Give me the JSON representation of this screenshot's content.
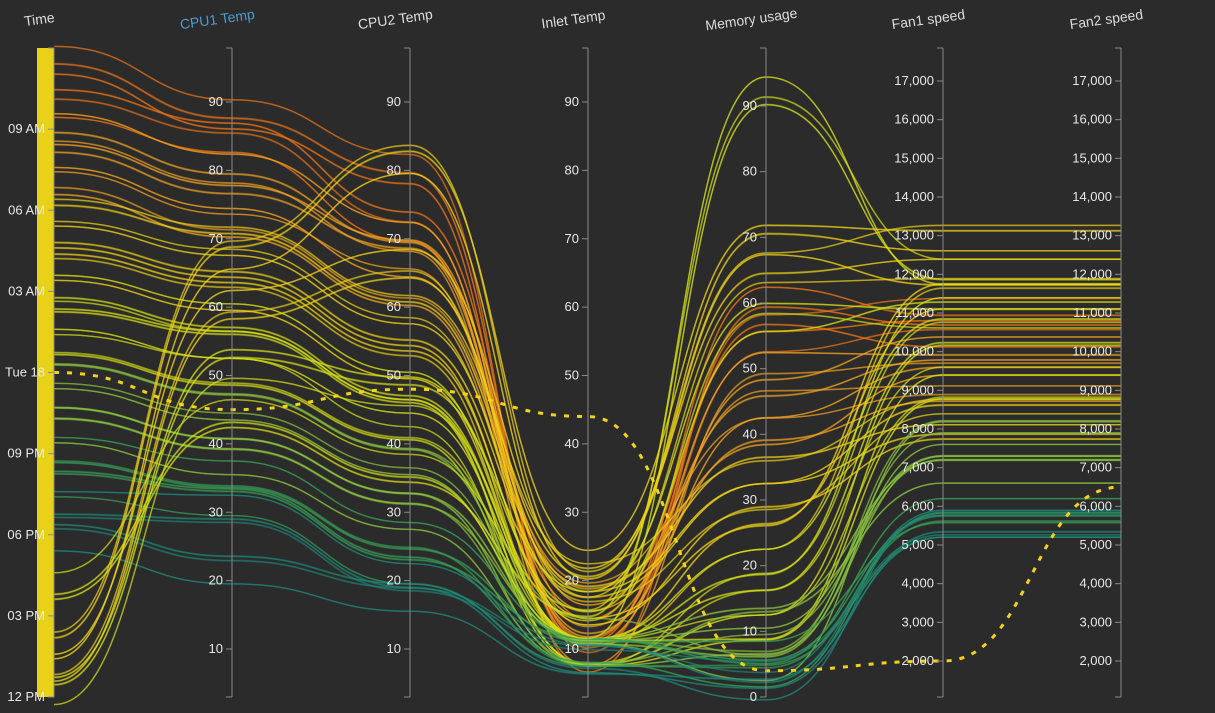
{
  "chart_data": {
    "type": "parallel-coordinates",
    "background": "#2b2b2b",
    "color_scale": [
      "#1f8a7a",
      "#3aa05a",
      "#8cc63f",
      "#d6e21a",
      "#f2d31a",
      "#f5a623",
      "#f07818"
    ],
    "axes": [
      {
        "key": "time",
        "title": "Time",
        "active": false,
        "kind": "time",
        "ticks": [
          "12 PM",
          "03 PM",
          "06 PM",
          "09 PM",
          "Tue 18",
          "03 AM",
          "06 AM",
          "09 AM"
        ],
        "tick_values": [
          0,
          3,
          6,
          9,
          12,
          15,
          18,
          21
        ],
        "range": [
          0,
          24
        ]
      },
      {
        "key": "cpu1",
        "title": "CPU1 Temp",
        "active": true,
        "kind": "linear",
        "ticks": [
          "10",
          "20",
          "30",
          "40",
          "50",
          "60",
          "70",
          "80",
          "90"
        ],
        "tick_values": [
          10,
          20,
          30,
          40,
          50,
          60,
          70,
          80,
          90
        ],
        "range": [
          2,
          97
        ]
      },
      {
        "key": "cpu2",
        "title": "CPU2 Temp",
        "active": false,
        "kind": "linear",
        "ticks": [
          "10",
          "20",
          "30",
          "40",
          "50",
          "60",
          "70",
          "80",
          "90"
        ],
        "tick_values": [
          10,
          20,
          30,
          40,
          50,
          60,
          70,
          80,
          90
        ],
        "range": [
          2,
          97
        ]
      },
      {
        "key": "inlet",
        "title": "Inlet Temp",
        "active": false,
        "kind": "linear",
        "ticks": [
          "10",
          "20",
          "30",
          "40",
          "50",
          "60",
          "70",
          "80",
          "90"
        ],
        "tick_values": [
          10,
          20,
          30,
          40,
          50,
          60,
          70,
          80,
          90
        ],
        "range": [
          2,
          97
        ]
      },
      {
        "key": "memory",
        "title": "Memory usage",
        "active": false,
        "kind": "linear",
        "ticks": [
          "0",
          "10",
          "20",
          "30",
          "40",
          "50",
          "60",
          "70",
          "80",
          "90"
        ],
        "tick_values": [
          0,
          10,
          20,
          30,
          40,
          50,
          60,
          70,
          80,
          90
        ],
        "range": [
          0,
          99
        ]
      },
      {
        "key": "fan1",
        "title": "Fan1 speed",
        "active": false,
        "kind": "linear",
        "ticks": [
          "2,000",
          "3,000",
          "4,000",
          "5,000",
          "6,000",
          "7,000",
          "8,000",
          "9,000",
          "10,000",
          "11,000",
          "12,000",
          "13,000",
          "14,000",
          "15,000",
          "16,000",
          "17,000"
        ],
        "tick_values": [
          2000,
          3000,
          4000,
          5000,
          6000,
          7000,
          8000,
          9000,
          10000,
          11000,
          12000,
          13000,
          14000,
          15000,
          16000,
          17000
        ],
        "range": [
          1000,
          17700
        ]
      },
      {
        "key": "fan2",
        "title": "Fan2 speed",
        "active": false,
        "kind": "linear",
        "ticks": [
          "2,000",
          "3,000",
          "4,000",
          "5,000",
          "6,000",
          "7,000",
          "8,000",
          "9,000",
          "10,000",
          "11,000",
          "12,000",
          "13,000",
          "14,000",
          "15,000",
          "16,000",
          "17,000"
        ],
        "tick_values": [
          2000,
          3000,
          4000,
          5000,
          6000,
          7000,
          8000,
          9000,
          10000,
          11000,
          12000,
          13000,
          14000,
          15000,
          16000,
          17000
        ],
        "range": [
          1000,
          17700
        ]
      }
    ],
    "records": [
      {
        "time": 23.5,
        "cpu1": 88,
        "cpu2": 80,
        "inlet": 9,
        "memory": 60,
        "fan1": 11000,
        "fan2": 11000,
        "c": 6
      },
      {
        "time": 22.0,
        "cpu1": 85,
        "cpu2": 72,
        "inlet": 12,
        "memory": 55,
        "fan1": 10500,
        "fan2": 10500,
        "c": 6
      },
      {
        "time": 21.0,
        "cpu1": 80,
        "cpu2": 70,
        "inlet": 10,
        "memory": 50,
        "fan1": 10000,
        "fan2": 10000,
        "c": 5
      },
      {
        "time": 20.0,
        "cpu1": 76,
        "cpu2": 68,
        "inlet": 14,
        "memory": 45,
        "fan1": 9500,
        "fan2": 9500,
        "c": 5
      },
      {
        "time": 19.0,
        "cpu1": 72,
        "cpu2": 62,
        "inlet": 18,
        "memory": 40,
        "fan1": 9000,
        "fan2": 9000,
        "c": 5
      },
      {
        "time": 18.0,
        "cpu1": 70,
        "cpu2": 60,
        "inlet": 20,
        "memory": 35,
        "fan1": 8500,
        "fan2": 8500,
        "c": 4
      },
      {
        "time": 17.0,
        "cpu1": 66,
        "cpu2": 56,
        "inlet": 16,
        "memory": 30,
        "fan1": 8000,
        "fan2": 8000,
        "c": 4
      },
      {
        "time": 16.0,
        "cpu1": 62,
        "cpu2": 52,
        "inlet": 12,
        "memory": 25,
        "fan1": 11500,
        "fan2": 11500,
        "c": 4
      },
      {
        "time": 15.0,
        "cpu1": 58,
        "cpu2": 48,
        "inlet": 10,
        "memory": 20,
        "fan1": 11000,
        "fan2": 11000,
        "c": 3
      },
      {
        "time": 14.0,
        "cpu1": 55,
        "cpu2": 45,
        "inlet": 9,
        "memory": 15,
        "fan1": 10000,
        "fan2": 10000,
        "c": 3
      },
      {
        "time": 13.0,
        "cpu1": 50,
        "cpu2": 42,
        "inlet": 10,
        "memory": 10,
        "fan1": 9000,
        "fan2": 9000,
        "c": 3
      },
      {
        "time": 12.0,
        "cpu1": 46,
        "cpu2": 38,
        "inlet": 12,
        "memory": 5,
        "fan1": 8000,
        "fan2": 8000,
        "c": 2
      },
      {
        "time": 11.0,
        "cpu1": 42,
        "cpu2": 34,
        "inlet": 10,
        "memory": 8,
        "fan1": 7500,
        "fan2": 7500,
        "c": 2
      },
      {
        "time": 10.0,
        "cpu1": 38,
        "cpu2": 30,
        "inlet": 9,
        "memory": 12,
        "fan1": 7000,
        "fan2": 7000,
        "c": 2
      },
      {
        "time": 9.0,
        "cpu1": 35,
        "cpu2": 26,
        "inlet": 10,
        "memory": 6,
        "fan1": 5800,
        "fan2": 5800,
        "c": 1
      },
      {
        "time": 8.0,
        "cpu1": 32,
        "cpu2": 22,
        "inlet": 9,
        "memory": 4,
        "fan1": 5600,
        "fan2": 5600,
        "c": 1
      },
      {
        "time": 7.0,
        "cpu1": 30,
        "cpu2": 20,
        "inlet": 9,
        "memory": 3,
        "fan1": 5500,
        "fan2": 5500,
        "c": 0
      },
      {
        "time": 6.0,
        "cpu1": 22,
        "cpu2": 18,
        "inlet": 8,
        "memory": 2,
        "fan1": 5600,
        "fan2": 5600,
        "c": 0
      },
      {
        "time": 4.0,
        "cpu1": 44,
        "cpu2": 36,
        "inlet": 14,
        "memory": 92,
        "fan1": 12000,
        "fan2": 12000,
        "c": 3
      },
      {
        "time": 2.0,
        "cpu1": 68,
        "cpu2": 82,
        "inlet": 22,
        "memory": 70,
        "fan1": 13000,
        "fan2": 13000,
        "c": 4
      },
      {
        "time": 1.0,
        "cpu1": 60,
        "cpu2": 66,
        "inlet": 20,
        "memory": 65,
        "fan1": 12000,
        "fan2": 12000,
        "c": 4
      },
      {
        "time": 0.3,
        "cpu1": 52,
        "cpu2": 48,
        "inlet": 16,
        "memory": 58,
        "fan1": 11000,
        "fan2": 11000,
        "c": 3
      }
    ],
    "outlier": {
      "time": 12.0,
      "cpu1": 45,
      "cpu2": 48,
      "inlet": 44,
      "memory": 4,
      "fan1": 2000,
      "fan2": 6500
    }
  }
}
